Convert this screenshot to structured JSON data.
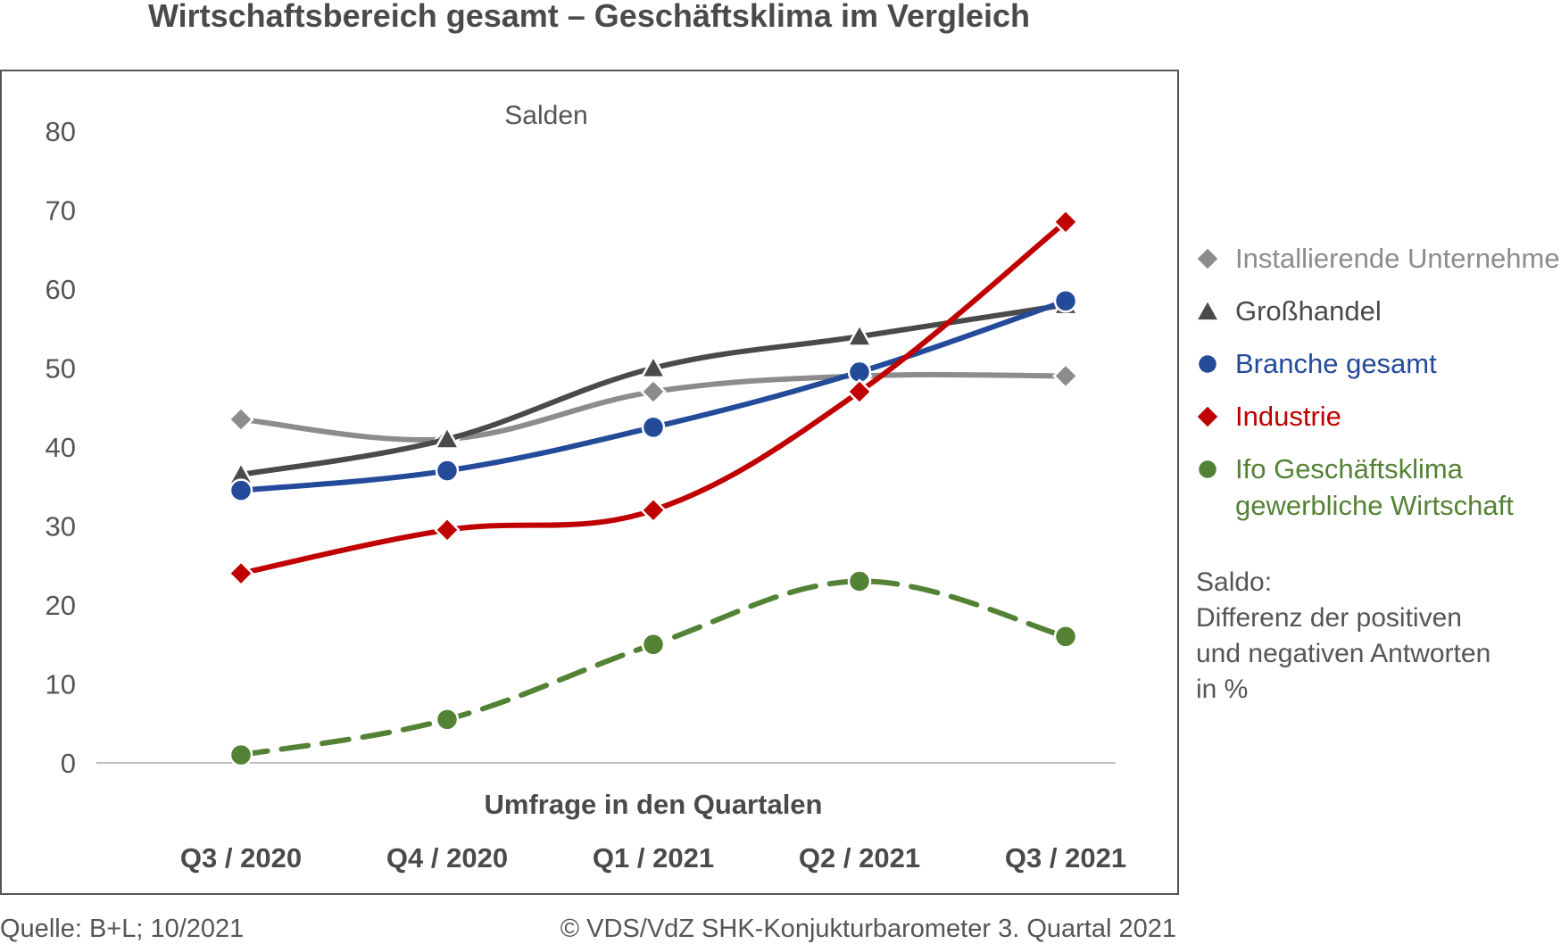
{
  "chart_data": {
    "type": "line",
    "title": "Wirtschaftsbereich gesamt – Geschäftsklima im Vergleich",
    "subtitle": "Salden",
    "xlabel": "Umfrage in den Quartalen",
    "ylabel": "",
    "categories": [
      "Q3 / 2020",
      "Q4 / 2020",
      "Q1 / 2021",
      "Q2 / 2021",
      "Q3 / 2021"
    ],
    "ylim": [
      0,
      80
    ],
    "yticks": [
      0,
      10,
      20,
      30,
      40,
      50,
      60,
      70,
      80
    ],
    "series": [
      {
        "name": "Installierende Unternehmen",
        "marker": "diamond",
        "line": "solid",
        "color": "#8c8c8c",
        "values": [
          43.5,
          41,
          47,
          49,
          49
        ]
      },
      {
        "name": "Großhandel",
        "marker": "triangle",
        "line": "solid",
        "color": "#4a4a4a",
        "values": [
          36.5,
          41,
          50,
          54,
          58
        ]
      },
      {
        "name": "Branche gesamt",
        "marker": "circle",
        "line": "solid",
        "color": "#244a9a",
        "values": [
          34.5,
          37,
          42.5,
          49.5,
          58.5
        ]
      },
      {
        "name": "Industrie",
        "marker": "diamond",
        "line": "solid",
        "color": "#c00000",
        "values": [
          24,
          29.5,
          32,
          47,
          68.5
        ]
      },
      {
        "name": "Ifo Geschäftsklima gewerbliche Wirtschaft",
        "legend_lines": [
          "Ifo Geschäftsklima",
          "gewerbliche Wirtschaft"
        ],
        "marker": "circle",
        "line": "dashed",
        "color": "#548235",
        "values": [
          1,
          5.5,
          15,
          23,
          16
        ]
      }
    ],
    "note": {
      "heading": "Saldo:",
      "lines": [
        "Differenz der positiven",
        "und negativen Antworten",
        "in %"
      ]
    }
  },
  "footer": {
    "source": "Quelle: B+L; 10/2021",
    "copyright": "© VDS/VdZ SHK-Konjukturbarometer 3. Quartal 2021"
  },
  "colors": {
    "frame": "#555555",
    "axis": "#bfbfbf",
    "text": "#4a4a4a"
  }
}
